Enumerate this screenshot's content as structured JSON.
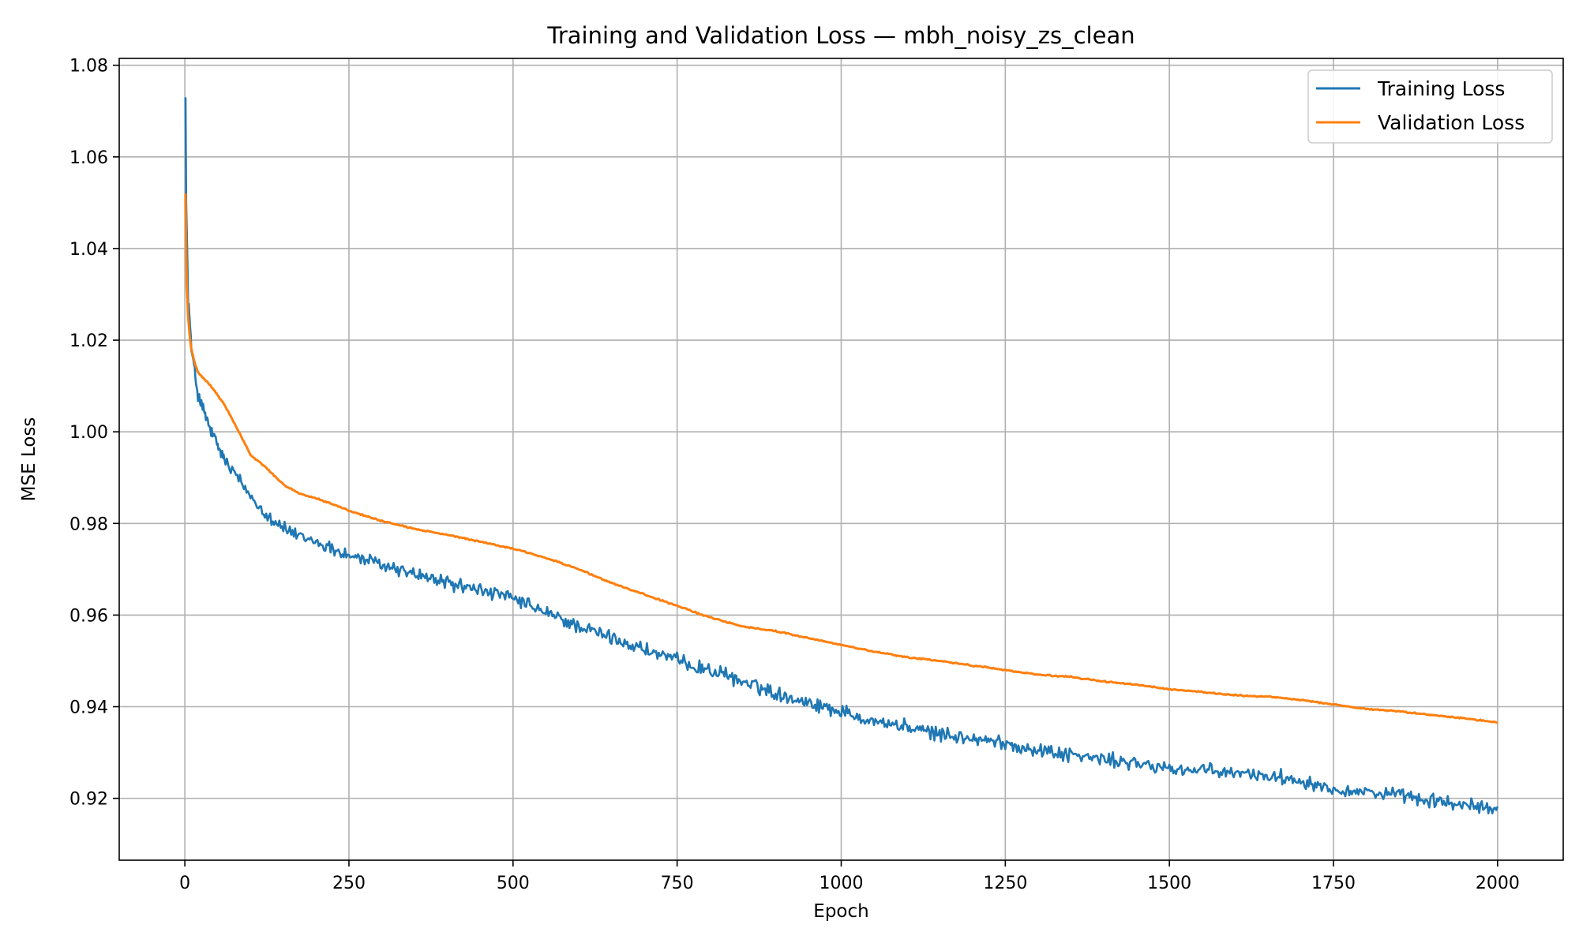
{
  "chart_data": {
    "type": "line",
    "title": "Training and Validation Loss — mbh_noisy_zs_clean",
    "xlabel": "Epoch",
    "ylabel": "MSE Loss",
    "xlim": [
      -100,
      2100
    ],
    "ylim": [
      0.9065,
      1.0815
    ],
    "x_ticks": [
      0,
      250,
      500,
      750,
      1000,
      1250,
      1500,
      1750,
      2000
    ],
    "y_ticks": [
      0.92,
      0.94,
      0.96,
      0.98,
      1.0,
      1.02,
      1.04,
      1.06,
      1.08
    ],
    "x_tick_labels": [
      "0",
      "250",
      "500",
      "750",
      "1000",
      "1250",
      "1500",
      "1750",
      "2000"
    ],
    "y_tick_labels": [
      "0.92",
      "0.94",
      "0.96",
      "0.98",
      "1.00",
      "1.02",
      "1.04",
      "1.06",
      "1.08"
    ],
    "grid": true,
    "legend_position": "top-right",
    "series": [
      {
        "name": "Training Loss",
        "color": "#1f77b4",
        "x": [
          1,
          2,
          5,
          10,
          15,
          20,
          30,
          40,
          50,
          60,
          75,
          100,
          125,
          150,
          175,
          200,
          250,
          300,
          350,
          400,
          450,
          500,
          550,
          600,
          650,
          700,
          750,
          800,
          850,
          900,
          950,
          1000,
          1050,
          1100,
          1150,
          1200,
          1250,
          1300,
          1350,
          1400,
          1450,
          1500,
          1550,
          1600,
          1650,
          1700,
          1750,
          1800,
          1850,
          1900,
          1950,
          2000
        ],
        "y": [
          1.073,
          1.05,
          1.03,
          1.018,
          1.013,
          1.008,
          1.004,
          1.0,
          0.997,
          0.994,
          0.991,
          0.986,
          0.982,
          0.979,
          0.977,
          0.976,
          0.973,
          0.971,
          0.969,
          0.967,
          0.9655,
          0.9635,
          0.9605,
          0.9575,
          0.955,
          0.9525,
          0.95,
          0.948,
          0.9455,
          0.943,
          0.941,
          0.939,
          0.937,
          0.9355,
          0.934,
          0.933,
          0.932,
          0.9305,
          0.9295,
          0.9285,
          0.9275,
          0.9265,
          0.926,
          0.9255,
          0.925,
          0.924,
          0.922,
          0.9215,
          0.9205,
          0.9195,
          0.9185,
          0.9175
        ]
      },
      {
        "name": "Validation Loss",
        "color": "#ff7f0e",
        "x": [
          1,
          2,
          3,
          5,
          8,
          10,
          15,
          20,
          30,
          40,
          50,
          60,
          75,
          100,
          125,
          150,
          175,
          200,
          225,
          250,
          300,
          350,
          400,
          450,
          500,
          550,
          600,
          650,
          700,
          750,
          800,
          850,
          900,
          950,
          1000,
          1050,
          1100,
          1150,
          1200,
          1250,
          1300,
          1350,
          1400,
          1450,
          1500,
          1550,
          1600,
          1650,
          1700,
          1750,
          1800,
          1850,
          1900,
          1950,
          2000
        ],
        "y": [
          1.052,
          1.04,
          1.032,
          1.025,
          1.02,
          1.018,
          1.015,
          1.013,
          1.0115,
          1.01,
          1.008,
          1.006,
          1.002,
          0.995,
          0.992,
          0.9885,
          0.9865,
          0.9855,
          0.9842,
          0.9828,
          0.9805,
          0.9788,
          0.9775,
          0.976,
          0.9745,
          0.9725,
          0.97,
          0.967,
          0.9645,
          0.962,
          0.9595,
          0.9575,
          0.9565,
          0.955,
          0.9535,
          0.952,
          0.9508,
          0.95,
          0.949,
          0.948,
          0.947,
          0.9465,
          0.9455,
          0.9448,
          0.9438,
          0.9432,
          0.9425,
          0.9422,
          0.9415,
          0.9405,
          0.9395,
          0.939,
          0.9382,
          0.9375,
          0.9365
        ]
      }
    ]
  }
}
